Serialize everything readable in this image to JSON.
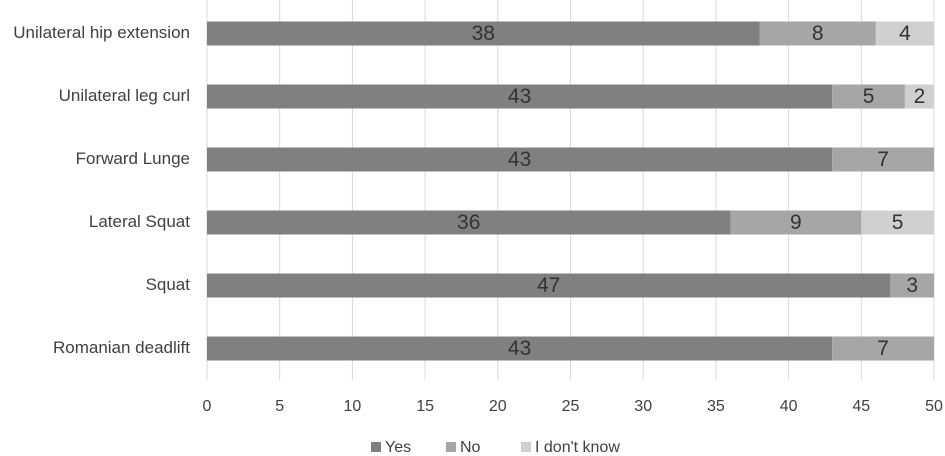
{
  "chart_data": {
    "type": "bar",
    "orientation": "horizontal",
    "stacked": true,
    "categories": [
      "Unilateral hip extension",
      "Unilateral leg curl",
      "Forward Lunge",
      "Lateral Squat",
      "Squat",
      "Romanian deadlift"
    ],
    "series": [
      {
        "name": "Yes",
        "color": "#808080",
        "values": [
          38,
          43,
          43,
          36,
          47,
          43
        ]
      },
      {
        "name": "No",
        "color": "#a6a6a6",
        "values": [
          8,
          5,
          7,
          9,
          3,
          7
        ]
      },
      {
        "name": "I don't know",
        "color": "#d0d0d0",
        "values": [
          4,
          2,
          null,
          5,
          null,
          null
        ]
      }
    ],
    "xlim": [
      0,
      50
    ],
    "xticks": [
      0,
      5,
      10,
      15,
      20,
      25,
      30,
      35,
      40,
      45,
      50
    ],
    "grid": true,
    "legend": "bottom"
  }
}
